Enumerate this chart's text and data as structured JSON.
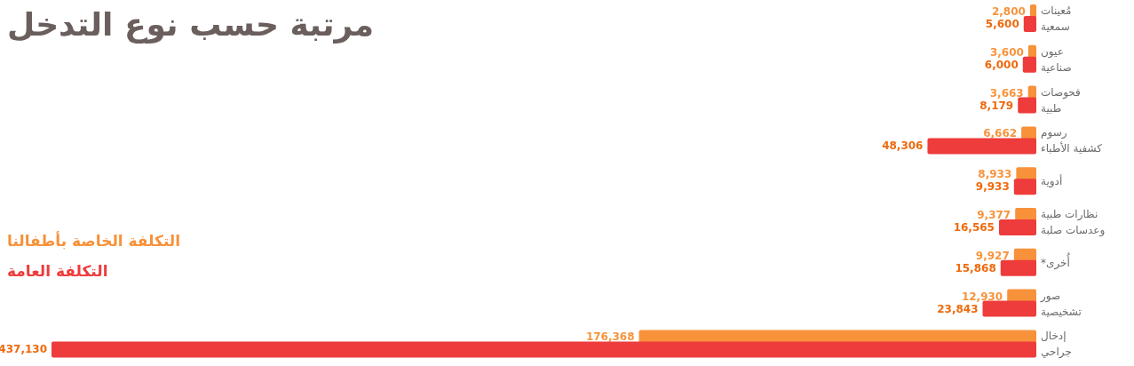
{
  "chart_data": {
    "type": "bar",
    "orientation": "horizontal",
    "title": "مرتبة حسب نوع التدخل",
    "categories": [
      "مُعينات\nسمعية",
      "عيون\nصناعية",
      "فحوصات\nطبية",
      "رسوم\nكشفية الأطباء",
      "أدوية",
      "نظارات طبية\nوعدسات صلبة",
      "أُخرى*",
      "صور\nتشخيصية",
      "إدخال\nجراحي"
    ],
    "series": [
      {
        "name": "التكلفة الخاصة بأطفالنا",
        "color": "#f7923a",
        "values": [
          2800,
          3600,
          3663,
          6662,
          8933,
          9377,
          9927,
          12930,
          176368
        ],
        "value_labels": [
          "2,800",
          "3,600",
          "3,663",
          "6,662",
          "8,933",
          "9,377",
          "9,927",
          "12,930",
          "176,368"
        ]
      },
      {
        "name": "التكلفة العامة",
        "color": "#ee3b3b",
        "values": [
          5600,
          6000,
          8179,
          48306,
          9933,
          16565,
          15868,
          23843,
          437130
        ],
        "value_labels": [
          "5,600",
          "6,000",
          "8,179",
          "48,306",
          "9,933",
          "16,565",
          "15,868",
          "23,843",
          "437,130"
        ]
      }
    ],
    "legend": "left",
    "tick_labels": false
  }
}
